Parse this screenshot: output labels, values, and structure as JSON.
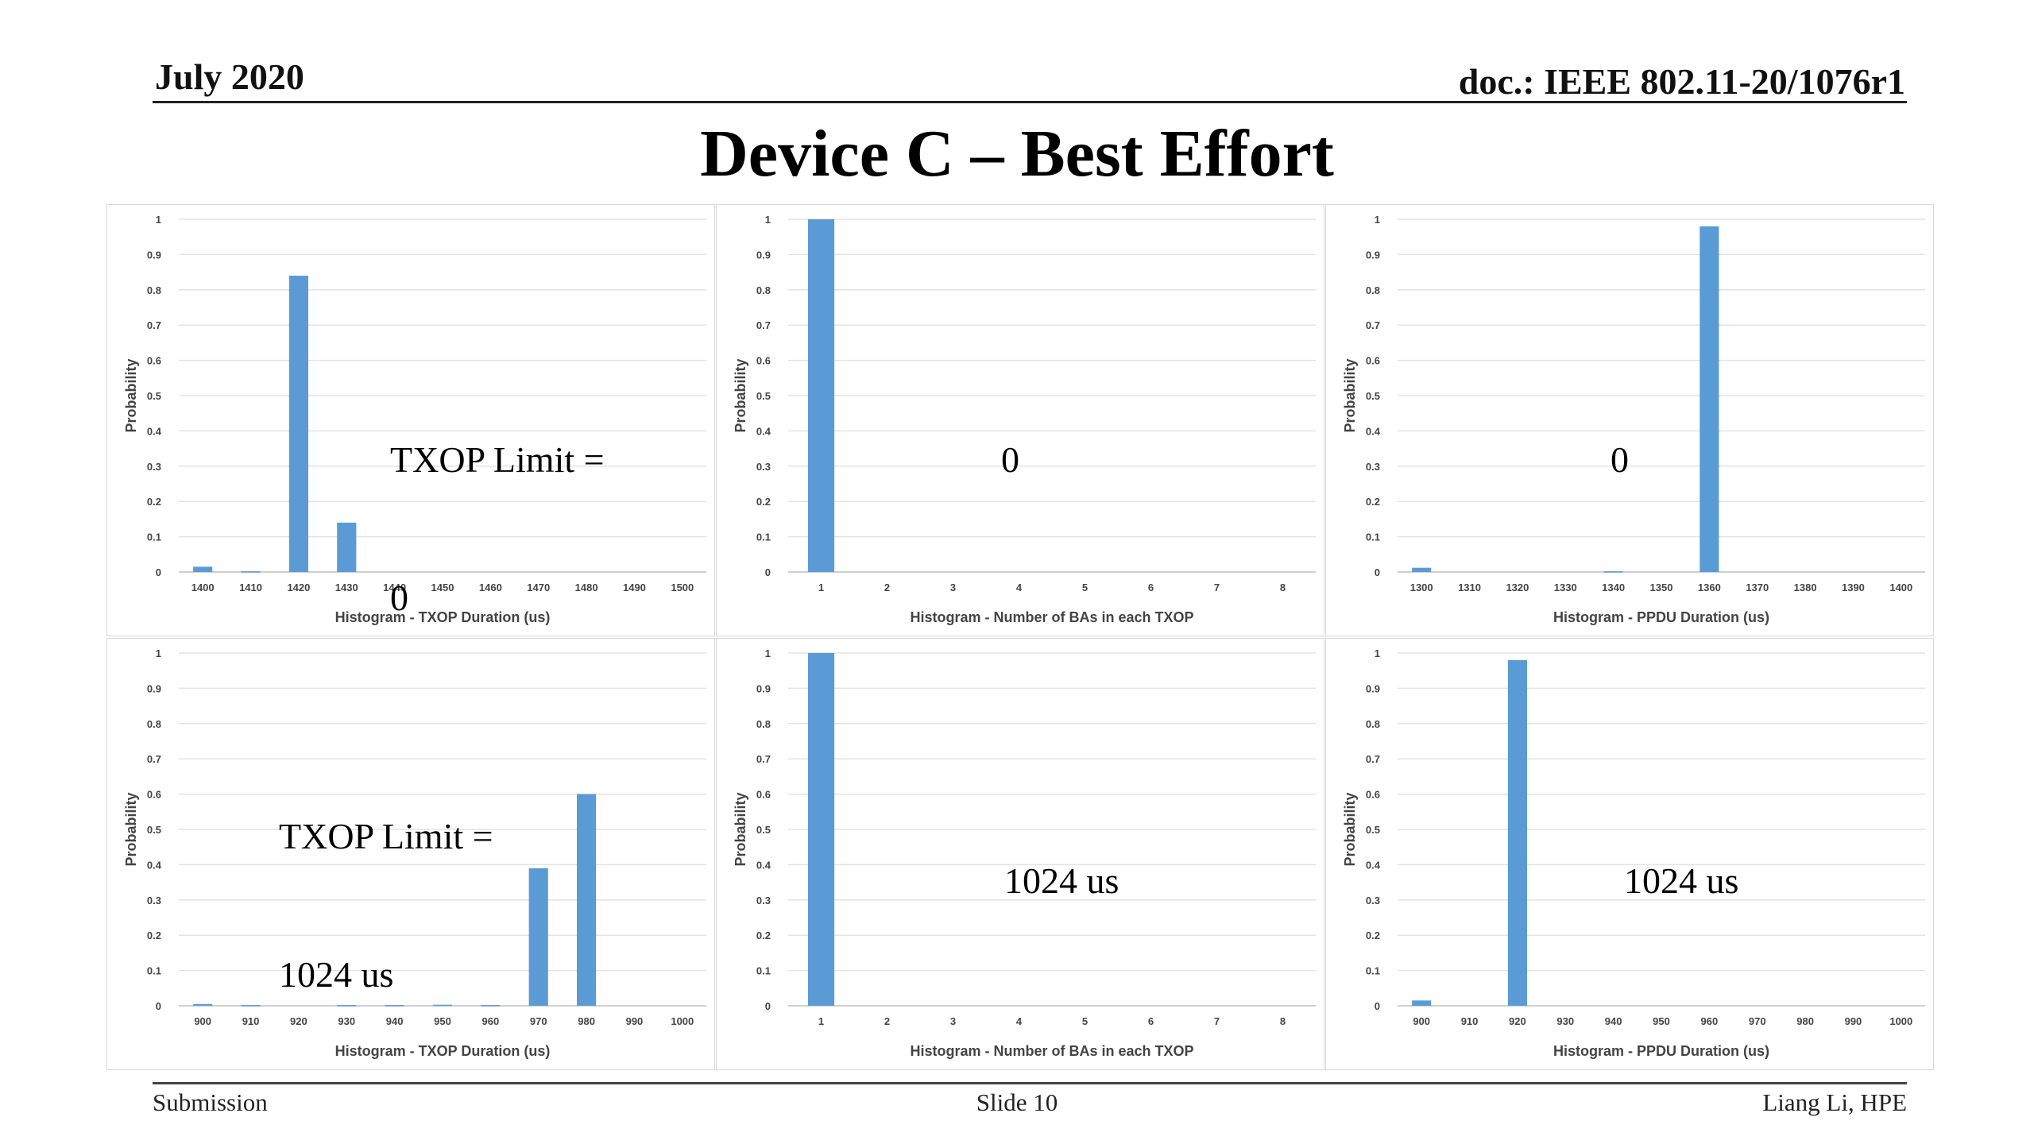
{
  "header": {
    "date": "July 2020",
    "doc": "doc.: IEEE 802.11-20/1076r1"
  },
  "title": "Device C – Best Effort",
  "footer": {
    "left": "Submission",
    "center": "Slide 10",
    "right": "Liang Li, HPE"
  },
  "bar_color": "#5b9bd5",
  "overlays": [
    {
      "line1": "TXOP Limit =",
      "line2": "0"
    },
    {
      "line1": "0",
      "line2": ""
    },
    {
      "line1": "0",
      "line2": ""
    },
    {
      "line1": "TXOP Limit =",
      "line2": "1024 us"
    },
    {
      "line1": "1024 us",
      "line2": ""
    },
    {
      "line1": "1024 us",
      "line2": ""
    }
  ],
  "chart_data": [
    {
      "type": "bar",
      "xlabel": "Histogram - TXOP Duration (us)",
      "ylabel": "Probability",
      "ylim": [
        0,
        1
      ],
      "yticks": [
        "0",
        "0.1",
        "0.2",
        "0.3",
        "0.4",
        "0.5",
        "0.6",
        "0.7",
        "0.8",
        "0.9",
        "1"
      ],
      "categories": [
        "1400",
        "1410",
        "1420",
        "1430",
        "1440",
        "1450",
        "1460",
        "1470",
        "1480",
        "1490",
        "1500"
      ],
      "values": [
        0.015,
        0.002,
        0.84,
        0.14,
        0,
        0,
        0,
        0,
        0,
        0,
        0
      ]
    },
    {
      "type": "bar",
      "xlabel": "Histogram - Number of BAs in each TXOP",
      "ylabel": "Probability",
      "ylim": [
        0,
        1
      ],
      "yticks": [
        "0",
        "0.1",
        "0.2",
        "0.3",
        "0.4",
        "0.5",
        "0.6",
        "0.7",
        "0.8",
        "0.9",
        "1"
      ],
      "categories": [
        "1",
        "2",
        "3",
        "4",
        "5",
        "6",
        "7",
        "8"
      ],
      "values": [
        1.0,
        0,
        0,
        0,
        0,
        0,
        0,
        0
      ]
    },
    {
      "type": "bar",
      "xlabel": "Histogram - PPDU Duration (us)",
      "ylabel": "Probability",
      "ylim": [
        0,
        1
      ],
      "yticks": [
        "0",
        "0.1",
        "0.2",
        "0.3",
        "0.4",
        "0.5",
        "0.6",
        "0.7",
        "0.8",
        "0.9",
        "1"
      ],
      "categories": [
        "1300",
        "1310",
        "1320",
        "1330",
        "1340",
        "1350",
        "1360",
        "1370",
        "1380",
        "1390",
        "1400"
      ],
      "values": [
        0.012,
        0,
        0,
        0,
        0.002,
        0,
        0.98,
        0,
        0,
        0,
        0
      ]
    },
    {
      "type": "bar",
      "xlabel": "Histogram - TXOP Duration (us)",
      "ylabel": "Probability",
      "ylim": [
        0,
        1
      ],
      "yticks": [
        "0",
        "0.1",
        "0.2",
        "0.3",
        "0.4",
        "0.5",
        "0.6",
        "0.7",
        "0.8",
        "0.9",
        "1"
      ],
      "categories": [
        "900",
        "910",
        "920",
        "930",
        "940",
        "950",
        "960",
        "970",
        "980",
        "990",
        "1000"
      ],
      "values": [
        0.005,
        0.002,
        0,
        0.002,
        0.002,
        0.003,
        0.002,
        0.39,
        0.6,
        0,
        0
      ]
    },
    {
      "type": "bar",
      "xlabel": "Histogram - Number of BAs in each TXOP",
      "ylabel": "Probability",
      "ylim": [
        0,
        1
      ],
      "yticks": [
        "0",
        "0.1",
        "0.2",
        "0.3",
        "0.4",
        "0.5",
        "0.6",
        "0.7",
        "0.8",
        "0.9",
        "1"
      ],
      "categories": [
        "1",
        "2",
        "3",
        "4",
        "5",
        "6",
        "7",
        "8"
      ],
      "values": [
        1.0,
        0,
        0,
        0,
        0,
        0,
        0,
        0
      ]
    },
    {
      "type": "bar",
      "xlabel": "Histogram - PPDU Duration (us)",
      "ylabel": "Probability",
      "ylim": [
        0,
        1
      ],
      "yticks": [
        "0",
        "0.1",
        "0.2",
        "0.3",
        "0.4",
        "0.5",
        "0.6",
        "0.7",
        "0.8",
        "0.9",
        "1"
      ],
      "categories": [
        "900",
        "910",
        "920",
        "930",
        "940",
        "950",
        "960",
        "970",
        "980",
        "990",
        "1000"
      ],
      "values": [
        0.015,
        0,
        0.98,
        0,
        0,
        0,
        0,
        0,
        0,
        0,
        0
      ]
    }
  ]
}
